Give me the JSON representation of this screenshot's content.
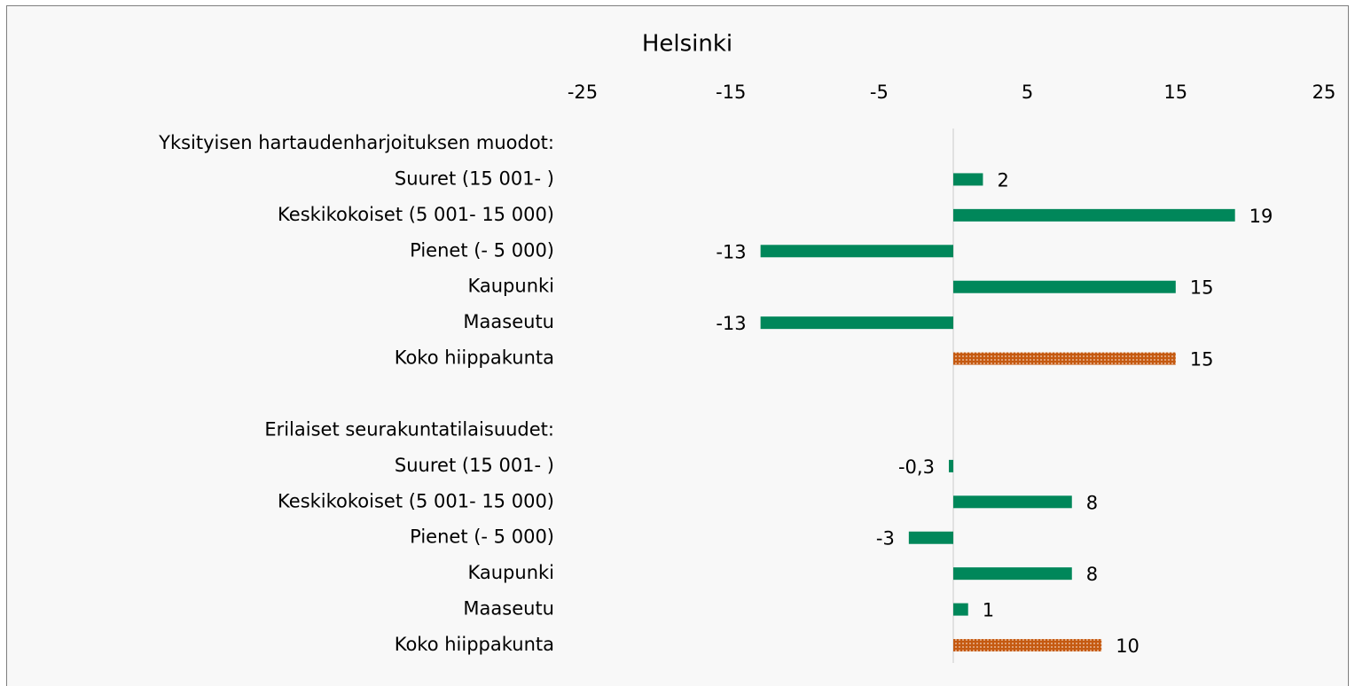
{
  "chart_data": {
    "type": "hbar",
    "title": "Helsinki",
    "categories": [
      "Yksityisen hartaudenharjoituksen muodot:",
      "Suuret (15 001- )",
      "Keskikokoiset (5 001- 15 000)",
      "Pienet (- 5 000)",
      "Kaupunki",
      "Maaseutu",
      "Koko hiippakunta",
      null,
      "Erilaiset seurakuntatilaisuudet:",
      "Suuret (15 001- )",
      "Keskikokoiset (5 001- 15 000)",
      "Pienet (- 5 000)",
      "Kaupunki",
      "Maaseutu",
      "Koko hiippakunta"
    ],
    "values": [
      null,
      2,
      19,
      -13,
      15,
      -13,
      15,
      null,
      null,
      -0.3,
      8,
      -3,
      8,
      1,
      10
    ],
    "value_labels": [
      null,
      null,
      null,
      null,
      null,
      null,
      null,
      null,
      null,
      "-0,3",
      null,
      null,
      null,
      null,
      null
    ],
    "colors": [
      null,
      "#00875a",
      "#00875a",
      "#00875a",
      "#00875a",
      "#00875a",
      "#c55a11",
      null,
      null,
      "#00875a",
      "#00875a",
      "#00875a",
      "#00875a",
      "#00875a",
      "#c55a11"
    ],
    "xlim": [
      -25,
      25
    ],
    "xticks": [
      -25,
      -15,
      -5,
      5,
      15,
      25
    ],
    "grid": false
  }
}
